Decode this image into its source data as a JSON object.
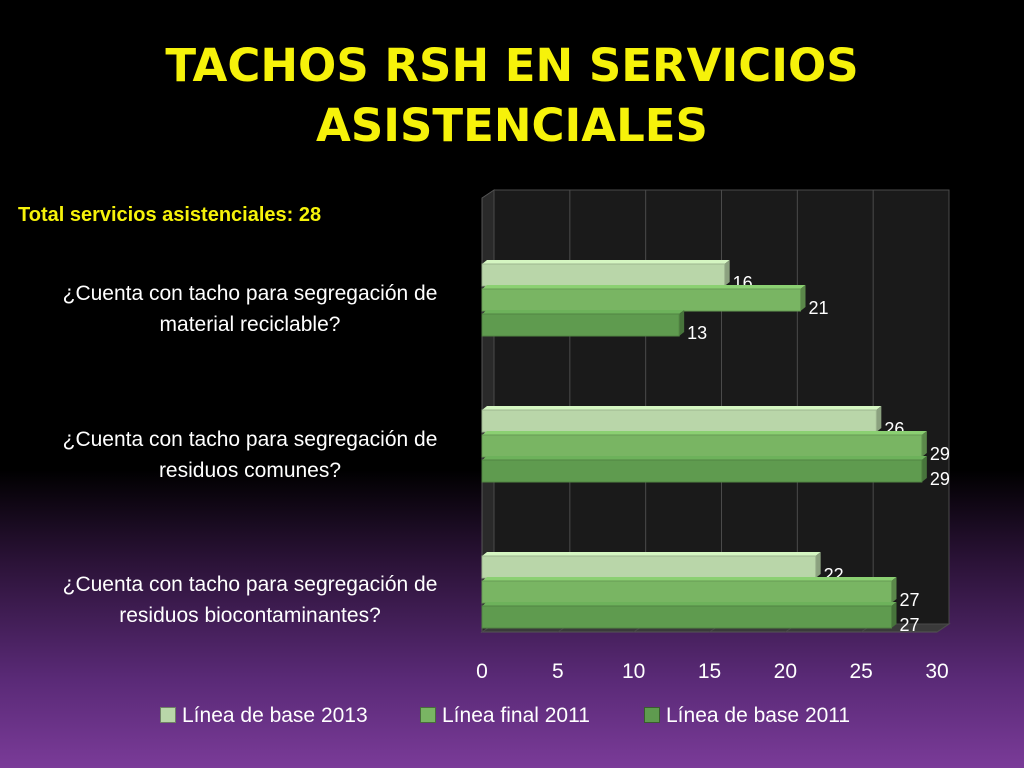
{
  "slide": {
    "title_line1": "TACHOS RSH EN SERVICIOS",
    "title_line2": "ASISTENCIALES",
    "subtitle": "Total servicios asistenciales: 28"
  },
  "chart_data": {
    "type": "bar",
    "orientation": "horizontal",
    "categories": [
      "¿Cuenta con tacho para segregación de material reciclable?",
      "¿Cuenta con tacho para segregación de residuos comunes?",
      "¿Cuenta con tacho para segregación de residuos biocontaminantes?"
    ],
    "category_lines": [
      [
        "¿Cuenta con tacho para segregación de",
        "material reciclable?"
      ],
      [
        "¿Cuenta con tacho para segregación de",
        "residuos comunes?"
      ],
      [
        "¿Cuenta con tacho para segregación de",
        "residuos biocontaminantes?"
      ]
    ],
    "series": [
      {
        "name": "Línea de base 2013",
        "values": [
          16,
          26,
          22
        ],
        "color": "#b9d6a9"
      },
      {
        "name": "Línea final 2011",
        "values": [
          21,
          29,
          27
        ],
        "color": "#79b563"
      },
      {
        "name": "Línea de base 2011",
        "values": [
          13,
          29,
          27
        ],
        "color": "#5f9b4f"
      }
    ],
    "xlim": [
      0,
      30
    ],
    "xticks": [
      "0",
      "5",
      "10",
      "15",
      "20",
      "25",
      "30"
    ],
    "grid": true,
    "legend_position": "bottom",
    "style": "3d"
  }
}
